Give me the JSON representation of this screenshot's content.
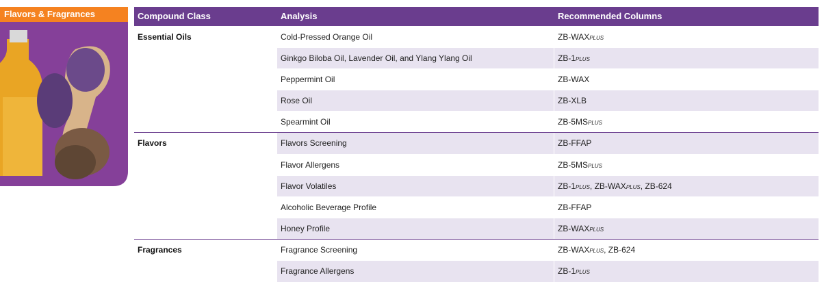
{
  "sidebar": {
    "title": "Flavors & Fragrances"
  },
  "table": {
    "headers": [
      "Compound Class",
      "Analysis",
      "Recommended Columns"
    ],
    "groups": [
      {
        "class": "Essential Oils",
        "rows": [
          {
            "analysis": "Cold-Pressed Orange Oil",
            "columns": [
              "ZB-WAX",
              "PLUS"
            ]
          },
          {
            "analysis": "Ginkgo Biloba Oil, Lavender Oil, and Ylang Ylang Oil",
            "columns": [
              "ZB-1",
              "PLUS"
            ]
          },
          {
            "analysis": "Peppermint Oil",
            "columns": [
              "ZB-WAX"
            ]
          },
          {
            "analysis": "Rose Oil",
            "columns": [
              "ZB-XLB"
            ]
          },
          {
            "analysis": "Spearmint Oil",
            "columns": [
              "ZB-5MS",
              "PLUS"
            ]
          }
        ]
      },
      {
        "class": "Flavors",
        "rows": [
          {
            "analysis": "Flavors Screening",
            "columns": [
              "ZB-FFAP"
            ]
          },
          {
            "analysis": "Flavor Allergens",
            "columns": [
              "ZB-5MS",
              "PLUS"
            ]
          },
          {
            "analysis": "Flavor Volatiles",
            "columns": [
              "ZB-1",
              "PLUS",
              ", ZB-WAX",
              "PLUS",
              ", ZB-624"
            ]
          },
          {
            "analysis": "Alcoholic Beverage Profile",
            "columns": [
              "ZB-FFAP"
            ]
          },
          {
            "analysis": "Honey Profile",
            "columns": [
              "ZB-WAX",
              "PLUS"
            ]
          }
        ]
      },
      {
        "class": "Fragrances",
        "rows": [
          {
            "analysis": "Fragrance Screening",
            "columns": [
              "ZB-WAX",
              "PLUS",
              ", ZB-624"
            ]
          },
          {
            "analysis": "Fragrance Allergens",
            "columns": [
              "ZB-1",
              "PLUS"
            ]
          }
        ]
      }
    ]
  }
}
